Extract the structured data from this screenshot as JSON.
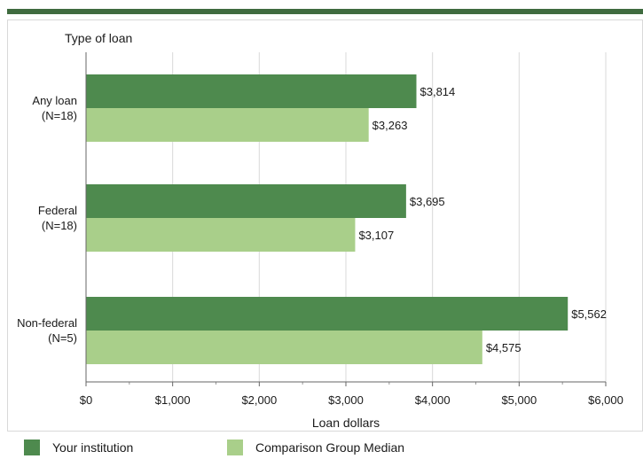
{
  "colors": {
    "header_rule": "#3f6b3f",
    "your_institution": "#4e8a4e",
    "comparison": "#a9cf8a",
    "grid": "#d9d9d9",
    "text": "#1a1a1a"
  },
  "chart_data": {
    "type": "bar",
    "orientation": "horizontal",
    "title": "",
    "ylabel": "Type of loan",
    "xlabel": "Loan dollars",
    "xlim": [
      0,
      6000
    ],
    "ticks": [
      "$0",
      "$1,000",
      "$2,000",
      "$3,000",
      "$4,000",
      "$5,000",
      "$6,000"
    ],
    "tick_values": [
      0,
      1000,
      2000,
      3000,
      4000,
      5000,
      6000
    ],
    "grid": true,
    "legend_position": "bottom",
    "categories": [
      {
        "line1": "Any loan",
        "line2": "(N=18)"
      },
      {
        "line1": "Federal",
        "line2": "(N=18)"
      },
      {
        "line1": "Non-federal",
        "line2": "(N=5)"
      }
    ],
    "series": [
      {
        "name": "Your institution",
        "values": [
          3814,
          3695,
          5562
        ],
        "labels": [
          "$3,814",
          "$3,695",
          "$5,562"
        ]
      },
      {
        "name": "Comparison Group Median",
        "values": [
          3263,
          3107,
          4575
        ],
        "labels": [
          "$3,263",
          "$3,107",
          "$4,575"
        ]
      }
    ]
  }
}
